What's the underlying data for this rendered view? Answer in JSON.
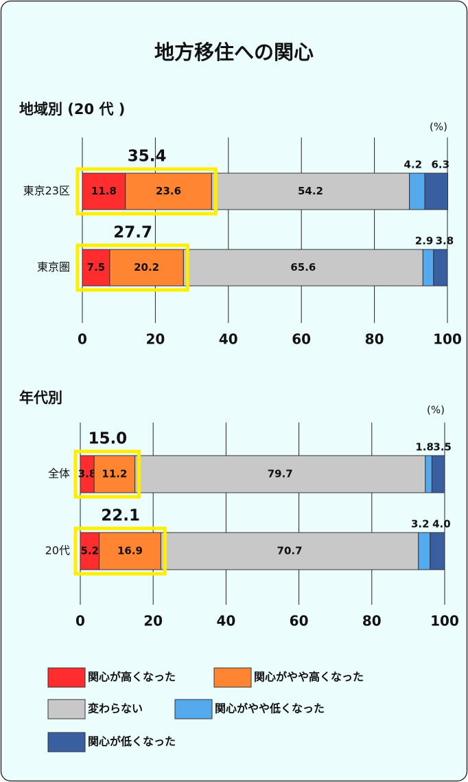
{
  "title": "地方移住への関心",
  "chart_data": [
    {
      "type": "stacked-bar",
      "title": "地域別 (20 代 )",
      "unit": "(%)",
      "categories": [
        "東京23区",
        "東京圏"
      ],
      "series": [
        {
          "name": "関心が高くなった",
          "color": "#ff2d2d",
          "values": [
            11.8,
            7.5
          ]
        },
        {
          "name": "関心がやや高くなった",
          "color": "#ff8533",
          "values": [
            23.6,
            20.2
          ]
        },
        {
          "name": "変わらない",
          "color": "#c8c8c8",
          "values": [
            54.2,
            65.6
          ]
        },
        {
          "name": "関心がやや低くなった",
          "color": "#55aaee",
          "values": [
            4.2,
            2.9
          ]
        },
        {
          "name": "関心が低くなった",
          "color": "#3a5fa0",
          "values": [
            6.3,
            3.8
          ]
        }
      ],
      "totals": {
        "values": [
          35.4,
          27.7
        ]
      },
      "xlim": [
        0,
        100
      ],
      "xticks": [
        0,
        20,
        40,
        60,
        80,
        100
      ],
      "grid": true
    },
    {
      "type": "stacked-bar",
      "title": "年代別",
      "unit": "(%)",
      "categories": [
        "全体",
        "20代"
      ],
      "series": [
        {
          "color": "#ff2d2d",
          "values": [
            3.8,
            5.2
          ]
        },
        {
          "color": "#ff8533",
          "values": [
            11.2,
            16.9
          ]
        },
        {
          "color": "#c8c8c8",
          "values": [
            79.7,
            70.7
          ]
        },
        {
          "color": "#55aaee",
          "values": [
            1.8,
            3.2
          ]
        },
        {
          "color": "#3a5fa0",
          "values": [
            3.5,
            4.0
          ],
          "value_labels": [
            "3.5",
            "4.0"
          ]
        }
      ],
      "totals": {
        "values": [
          15,
          22.1
        ],
        "value_labels": [
          "15.0",
          "22.1"
        ]
      },
      "xlim": [
        0,
        100
      ],
      "xticks": [
        0,
        20,
        40,
        60,
        80,
        100
      ],
      "grid": true
    }
  ]
}
